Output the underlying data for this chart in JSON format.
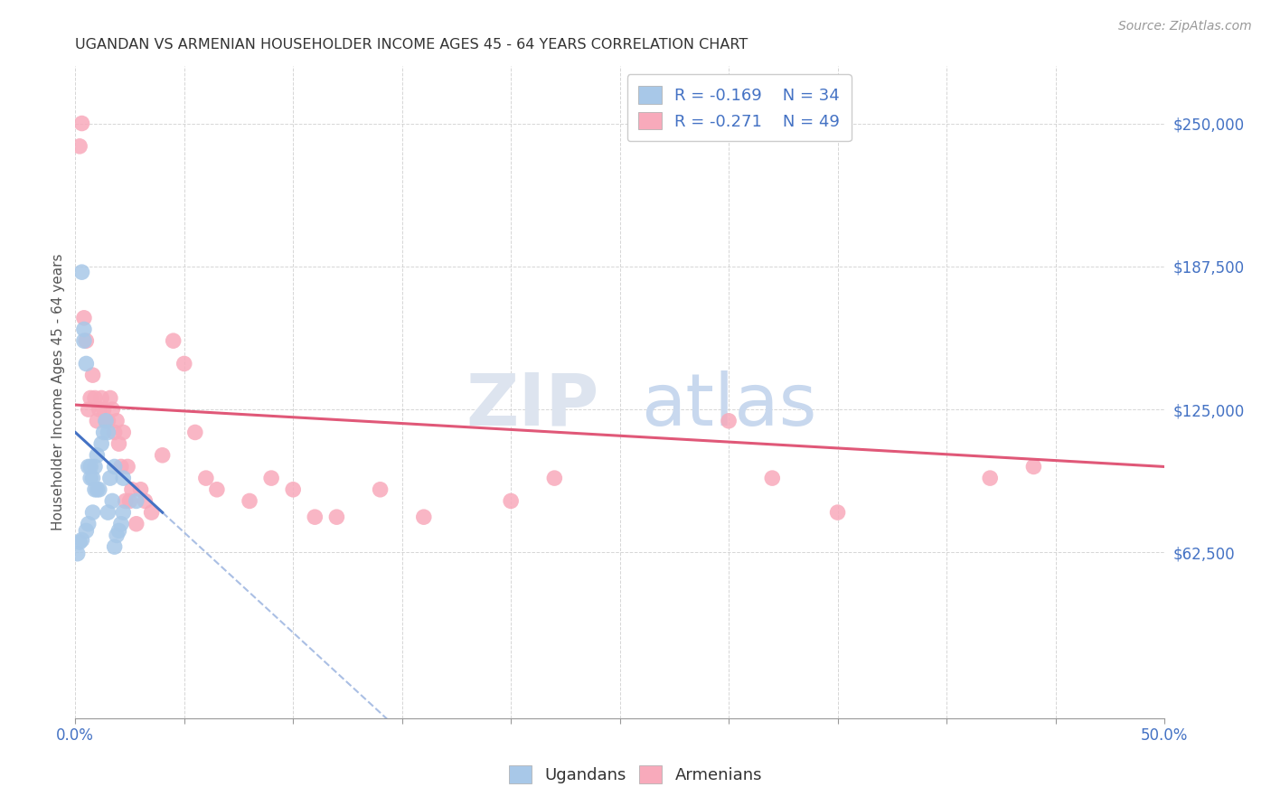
{
  "title": "UGANDAN VS ARMENIAN HOUSEHOLDER INCOME AGES 45 - 64 YEARS CORRELATION CHART",
  "source": "Source: ZipAtlas.com",
  "ylabel": "Householder Income Ages 45 - 64 years",
  "ytick_values": [
    62500,
    125000,
    187500,
    250000
  ],
  "ylim": [
    -10000,
    275000
  ],
  "xlim": [
    0.0,
    0.5
  ],
  "ugandan_color": "#a8c8e8",
  "armenian_color": "#f8aabb",
  "ugandan_line_color": "#4472c4",
  "armenian_line_color": "#e05878",
  "ugandan_r": -0.169,
  "ugandan_n": 34,
  "armenian_r": -0.271,
  "armenian_n": 49,
  "ugandan_x": [
    0.001,
    0.002,
    0.003,
    0.004,
    0.005,
    0.006,
    0.007,
    0.008,
    0.009,
    0.01,
    0.011,
    0.012,
    0.013,
    0.014,
    0.015,
    0.016,
    0.017,
    0.018,
    0.019,
    0.02,
    0.021,
    0.022,
    0.003,
    0.004,
    0.005,
    0.006,
    0.007,
    0.008,
    0.009,
    0.01,
    0.015,
    0.018,
    0.022,
    0.028
  ],
  "ugandan_y": [
    62000,
    67000,
    185000,
    160000,
    72000,
    75000,
    95000,
    80000,
    100000,
    105000,
    90000,
    110000,
    115000,
    120000,
    80000,
    95000,
    85000,
    65000,
    70000,
    72000,
    75000,
    80000,
    68000,
    155000,
    145000,
    100000,
    100000,
    95000,
    90000,
    90000,
    115000,
    100000,
    95000,
    85000
  ],
  "armenian_x": [
    0.002,
    0.003,
    0.004,
    0.005,
    0.006,
    0.007,
    0.008,
    0.009,
    0.01,
    0.011,
    0.012,
    0.013,
    0.014,
    0.015,
    0.016,
    0.017,
    0.018,
    0.019,
    0.02,
    0.021,
    0.022,
    0.023,
    0.024,
    0.025,
    0.026,
    0.028,
    0.03,
    0.032,
    0.035,
    0.04,
    0.045,
    0.05,
    0.055,
    0.06,
    0.065,
    0.08,
    0.09,
    0.1,
    0.11,
    0.12,
    0.14,
    0.16,
    0.2,
    0.22,
    0.3,
    0.32,
    0.35,
    0.42,
    0.44
  ],
  "armenian_y": [
    240000,
    250000,
    165000,
    155000,
    125000,
    130000,
    140000,
    130000,
    120000,
    125000,
    130000,
    125000,
    120000,
    120000,
    130000,
    125000,
    115000,
    120000,
    110000,
    100000,
    115000,
    85000,
    100000,
    85000,
    90000,
    75000,
    90000,
    85000,
    80000,
    105000,
    155000,
    145000,
    115000,
    95000,
    90000,
    85000,
    95000,
    90000,
    78000,
    78000,
    90000,
    78000,
    85000,
    95000,
    120000,
    95000,
    80000,
    95000,
    100000
  ],
  "ugandan_line_x0": 0.0,
  "ugandan_line_y0": 115000,
  "ugandan_line_x1": 0.04,
  "ugandan_line_y1": 80000,
  "armenian_line_x0": 0.0,
  "armenian_line_y0": 127000,
  "armenian_line_x1": 0.5,
  "armenian_line_y1": 100000
}
